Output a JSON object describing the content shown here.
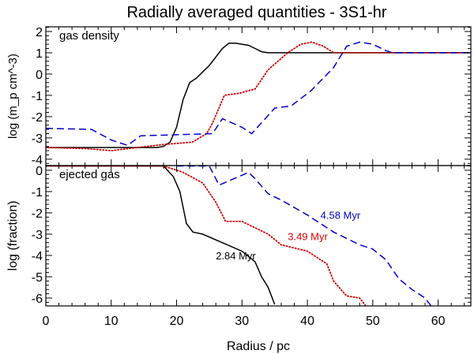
{
  "chart_data": {
    "type": "line",
    "title": "Radially averaged quantities - 3S1-hr",
    "xlabel": "Radius / pc",
    "xlim": [
      0,
      65
    ],
    "xticks": [
      0,
      10,
      20,
      30,
      40,
      50,
      60
    ],
    "grid": false,
    "panels": [
      {
        "label": "gas density",
        "ylabel": "log (m_p cm^-3)",
        "ylim": [
          -4.3,
          2.22
        ],
        "yticks": [
          -4,
          -3,
          -2,
          -1,
          0,
          1,
          2
        ],
        "series": [
          {
            "name": "2.84 Myr",
            "color": "#000000",
            "style": "solid",
            "x": [
              0,
              17,
              18,
              19,
              20,
              21,
              22,
              23,
              24,
              25,
              26,
              27,
              28,
              29,
              30,
              31,
              32,
              33,
              34,
              65
            ],
            "y": [
              -3.45,
              -3.45,
              -3.4,
              -3.2,
              -2.5,
              -1.2,
              -0.4,
              -0.2,
              0.1,
              0.4,
              0.8,
              1.2,
              1.45,
              1.45,
              1.4,
              1.35,
              1.2,
              1.05,
              1.0,
              1.0
            ]
          },
          {
            "name": "3.49 Myr",
            "color": "#cc0000",
            "style": "dotted",
            "x": [
              0,
              6,
              10,
              14,
              18.3,
              22.4,
              24.6,
              25.5,
              27.3,
              29.6,
              32,
              34,
              37,
              39,
              40.7,
              42.5,
              44,
              65
            ],
            "y": [
              -3.45,
              -3.5,
              -3.6,
              -3.45,
              -3.3,
              -3.2,
              -2.8,
              -2.3,
              -1.0,
              -0.9,
              -0.7,
              0.2,
              1.0,
              1.4,
              1.5,
              1.3,
              1.0,
              1.0
            ]
          },
          {
            "name": "4.58 Myr",
            "color": "#0000cc",
            "style": "dashed",
            "x": [
              0,
              7,
              10,
              12.5,
              14.5,
              20,
              25.5,
              27,
              30,
              31.5,
              35,
              37.5,
              40.5,
              44,
              46,
              48,
              50,
              52,
              53,
              65
            ],
            "y": [
              -2.55,
              -2.6,
              -3.1,
              -3.35,
              -2.9,
              -2.85,
              -2.8,
              -2.1,
              -2.5,
              -2.8,
              -1.6,
              -1.5,
              -0.8,
              0.3,
              1.3,
              1.5,
              1.4,
              1.1,
              1.0,
              1.0
            ]
          }
        ]
      },
      {
        "label": "ejected gas",
        "ylabel": "log (fraction)",
        "ylim": [
          -6.37,
          0.22
        ],
        "yticks": [
          -6,
          -5,
          -4,
          -3,
          -2,
          -1,
          0
        ],
        "series": [
          {
            "name": "2.84 Myr",
            "color": "#000000",
            "style": "solid",
            "x": [
              0,
              18,
              19.5,
              20.5,
              21.5,
              22.5,
              24,
              27,
              30,
              32,
              33,
              34,
              35
            ],
            "y": [
              0.2,
              0.2,
              -0.3,
              -1.0,
              -2.5,
              -2.9,
              -3.0,
              -3.4,
              -3.8,
              -4.3,
              -5.0,
              -5.5,
              -6.3
            ]
          },
          {
            "name": "3.49 Myr",
            "color": "#cc0000",
            "style": "dotted",
            "x": [
              0,
              18,
              21,
              24,
              26,
              27.5,
              30,
              34,
              36,
              40,
              43,
              44,
              46,
              48,
              49
            ],
            "y": [
              0.2,
              0.2,
              -0.1,
              -0.6,
              -1.5,
              -2.4,
              -2.4,
              -3.0,
              -3.5,
              -3.8,
              -4.4,
              -5.2,
              -5.9,
              -6.0,
              -6.4
            ]
          },
          {
            "name": "4.58 Myr",
            "color": "#0000cc",
            "style": "dashed",
            "x": [
              20,
              25,
              26.5,
              28,
              31,
              32,
              34,
              36,
              40,
              44,
              48,
              50,
              52,
              54,
              56,
              58,
              59
            ],
            "y": [
              0.2,
              0.2,
              -0.7,
              -0.5,
              -0.1,
              -0.4,
              -1.1,
              -1.4,
              -2.1,
              -2.9,
              -3.5,
              -3.7,
              -4.2,
              -5.1,
              -5.6,
              -6.0,
              -6.4
            ]
          }
        ],
        "annotations": [
          {
            "text": "2.84 Myr",
            "x": 26,
            "y": -4.0,
            "color": "#000000"
          },
          {
            "text": "3.49 Myr",
            "x": 37,
            "y": -3.1,
            "color": "#cc0000"
          },
          {
            "text": "4.58 Myr",
            "x": 42,
            "y": -2.1,
            "color": "#0000cc"
          }
        ]
      }
    ]
  }
}
